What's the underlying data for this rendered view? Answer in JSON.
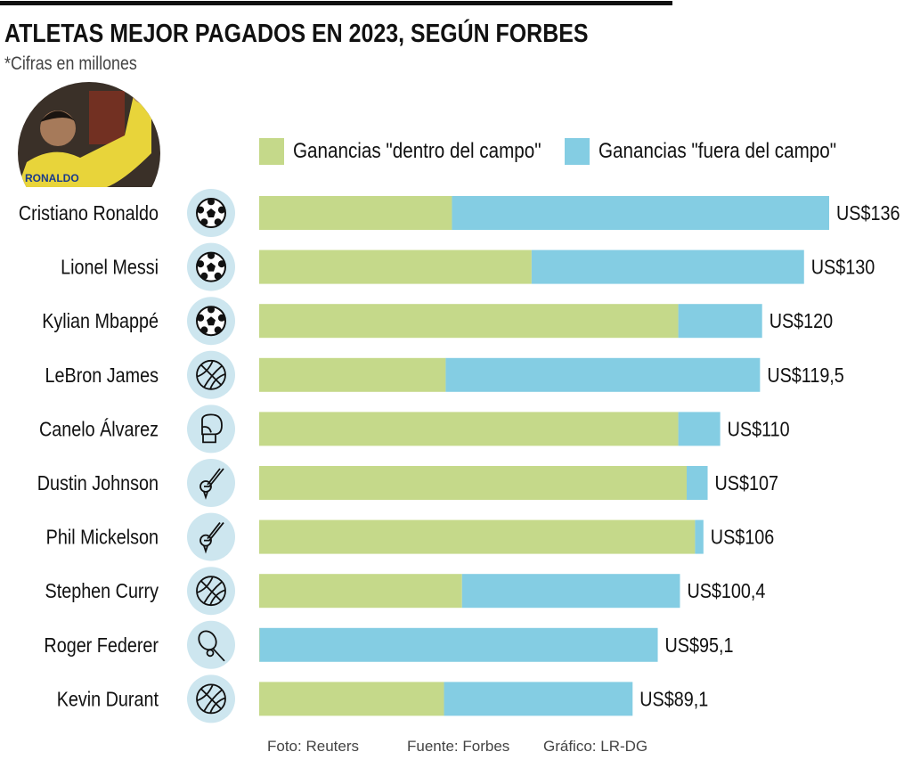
{
  "title": "ATLETAS MEJOR PAGADOS EN 2023, SEGÚN FORBES",
  "subtitle": "*Cifras en millones",
  "photo_caption": "RONALDO",
  "footer": {
    "photo": "Foto: Reuters",
    "source": "Fuente: Forbes",
    "graphic": "Gráfico: LR-DG"
  },
  "colors": {
    "on_field": "#c5d98a",
    "off_field": "#84cde3",
    "icon_bg": "#cde6ef"
  },
  "chart_data": {
    "type": "bar",
    "orientation": "horizontal",
    "stacked": true,
    "title": "ATLETAS MEJOR PAGADOS EN 2023, SEGÚN FORBES",
    "unit": "US$ millones",
    "legend_position": "top",
    "categories": [
      "Cristiano Ronaldo",
      "Lionel Messi",
      "Kylian Mbappé",
      "LeBron James",
      "Canelo Álvarez",
      "Dustin Johnson",
      "Phil Mickelson",
      "Stephen Curry",
      "Roger Federer",
      "Kevin Durant"
    ],
    "sports": [
      "soccer-ball",
      "soccer-ball",
      "soccer-ball",
      "basketball",
      "boxing-glove",
      "golf",
      "golf",
      "basketball",
      "tennis",
      "basketball"
    ],
    "series": [
      {
        "name": "Ganancias \"dentro del campo\"",
        "values": [
          46,
          65,
          100,
          44.5,
          100,
          102,
          104,
          48.4,
          0.1,
          44.1
        ]
      },
      {
        "name": "Ganancias \"fuera del campo\"",
        "values": [
          90,
          65,
          20,
          75,
          10,
          5,
          2,
          52,
          95,
          45
        ]
      }
    ],
    "totals": [
      136,
      130,
      120,
      119.5,
      110,
      107,
      106,
      100.4,
      95.1,
      89.1
    ],
    "total_labels": [
      "US$136",
      "US$130",
      "US$120",
      "US$119,5",
      "US$110",
      "US$107",
      "US$106",
      "US$100,4",
      "US$95,1",
      "US$89,1"
    ],
    "xlim": [
      0,
      136
    ]
  }
}
